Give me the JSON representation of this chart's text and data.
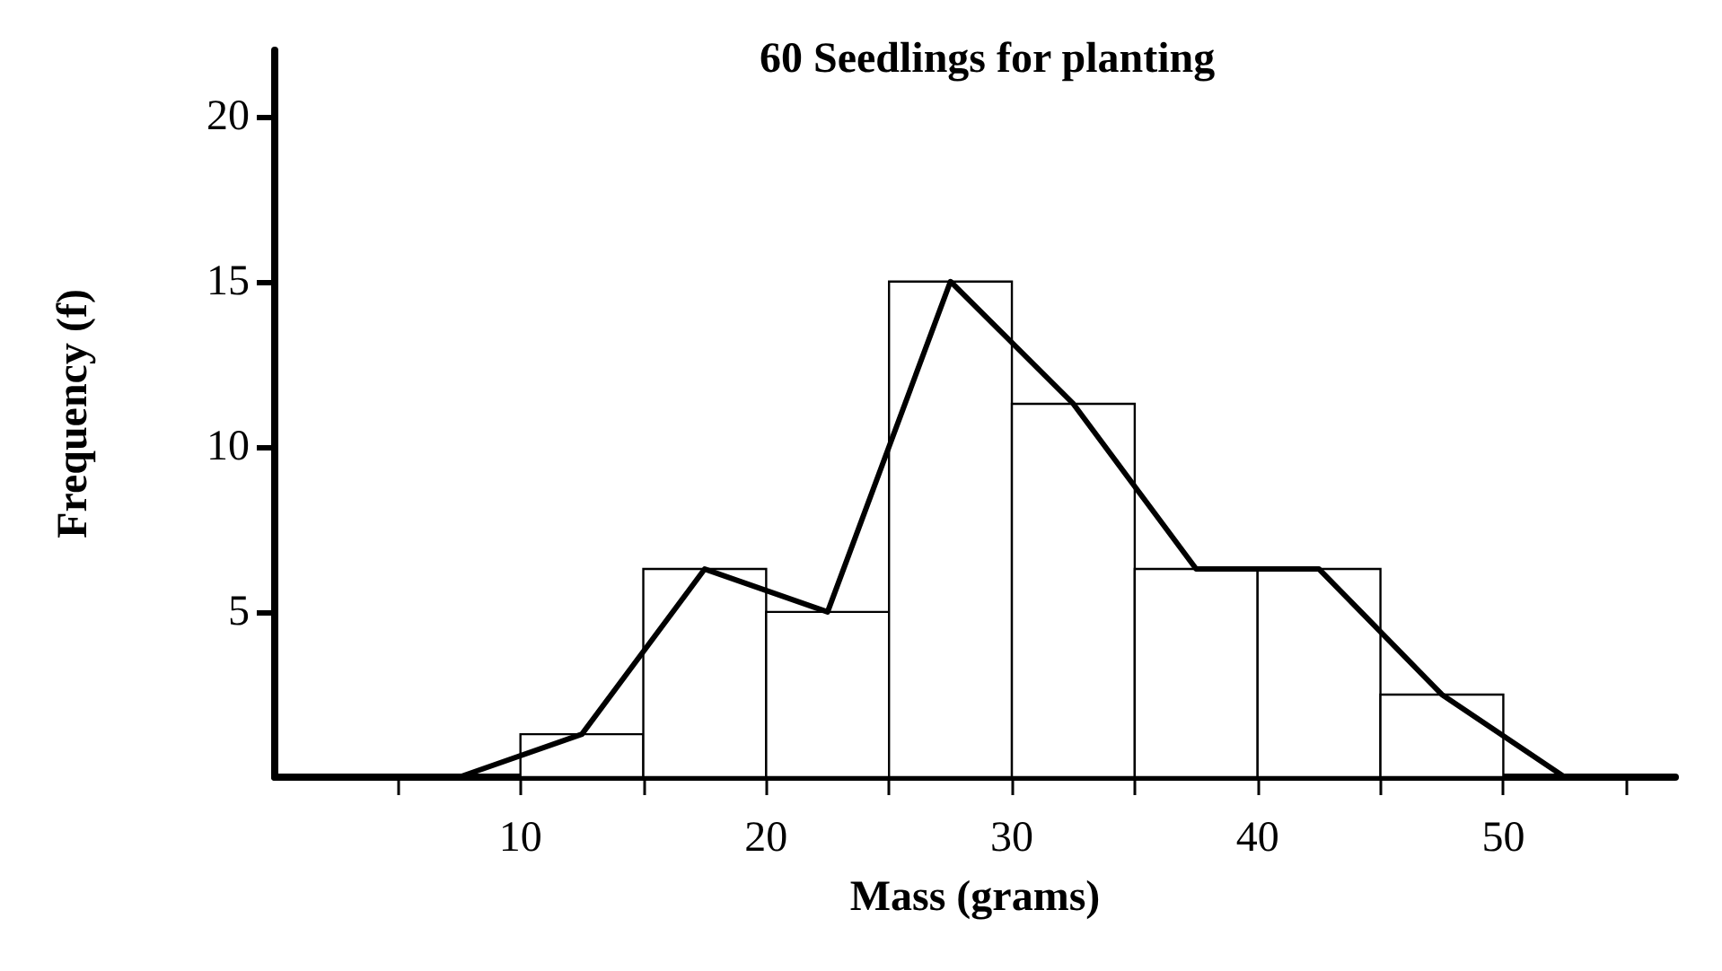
{
  "chart_data": {
    "type": "histogram",
    "title": "60 Seedlings for planting",
    "xlabel": "Mass (grams)",
    "ylabel": "Frequency (f)",
    "bins": [
      10,
      15,
      20,
      25,
      30,
      35,
      40,
      45,
      50
    ],
    "values": [
      1.3,
      6.3,
      5,
      15,
      11.3,
      6.3,
      6.3,
      2.5
    ],
    "color": "#ffffff",
    "series": [
      {
        "type": "line",
        "color": "#000000",
        "x": [
          7.5,
          12.5,
          17.5,
          22.5,
          27.5,
          32.5,
          37.5,
          42.5,
          47.5,
          52.5
        ],
        "values": [
          0,
          1.3,
          6.3,
          5,
          15,
          11.3,
          6.3,
          6.3,
          2.5,
          0
        ]
      }
    ],
    "xlim": [
      0,
      57
    ],
    "ylim": [
      0,
      22
    ],
    "xticks": [
      {
        "value": 5,
        "label": null
      },
      10,
      {
        "value": 15,
        "label": null
      },
      20,
      {
        "value": 25,
        "label": null
      },
      30,
      {
        "value": 35,
        "label": null
      },
      40,
      {
        "value": 45,
        "label": null
      },
      50,
      {
        "value": 55,
        "label": null
      }
    ],
    "yticks": [
      5,
      10,
      15,
      20
    ],
    "grid": false,
    "marker": "none",
    "line_style": "solid"
  }
}
